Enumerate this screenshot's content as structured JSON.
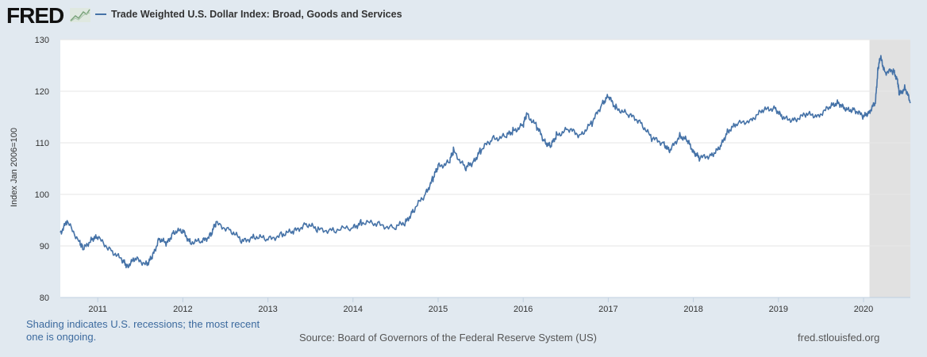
{
  "logo_text": "FRED",
  "footer": {
    "note": "Shading indicates U.S. recessions; the most recent one is ongoing.",
    "source": "Source: Board of Governors of the Federal Reserve System (US)",
    "site": "fred.stlouisfed.org"
  },
  "chart_data": {
    "type": "line",
    "title": "",
    "ylabel": "Index Jan 2006=100",
    "xlabel": "",
    "xlim": [
      2010.56,
      2020.55
    ],
    "ylim": [
      80,
      130
    ],
    "yticks": [
      80,
      90,
      100,
      110,
      120,
      130
    ],
    "xticks": [
      "2011",
      "2012",
      "2013",
      "2014",
      "2015",
      "2016",
      "2017",
      "2018",
      "2019",
      "2020"
    ],
    "grid": true,
    "legend": "top-left",
    "line_color": "#4572a7",
    "recession_color": "#e1e1e1",
    "recessions": [
      [
        2020.07,
        2020.55
      ]
    ],
    "series": [
      {
        "name": "Trade Weighted U.S. Dollar Index: Broad, Goods and Services",
        "x": [
          2010.56,
          2010.64,
          2010.79,
          2010.83,
          2010.93,
          2011.0,
          2011.16,
          2011.3,
          2011.35,
          2011.44,
          2011.58,
          2011.64,
          2011.72,
          2011.81,
          2011.89,
          2012.0,
          2012.09,
          2012.23,
          2012.33,
          2012.39,
          2012.56,
          2012.7,
          2012.84,
          2013.0,
          2013.17,
          2013.31,
          2013.45,
          2013.59,
          2013.78,
          2014.0,
          2014.1,
          2014.29,
          2014.48,
          2014.62,
          2014.71,
          2014.85,
          2014.94,
          2015.0,
          2015.13,
          2015.18,
          2015.32,
          2015.41,
          2015.5,
          2015.64,
          2015.79,
          2015.88,
          2016.0,
          2016.04,
          2016.16,
          2016.25,
          2016.32,
          2016.39,
          2016.53,
          2016.67,
          2016.81,
          2016.93,
          2017.0,
          2017.09,
          2017.23,
          2017.37,
          2017.51,
          2017.65,
          2017.72,
          2017.84,
          2017.93,
          2018.0,
          2018.07,
          2018.21,
          2018.31,
          2018.4,
          2018.5,
          2018.68,
          2018.82,
          2018.96,
          2019.05,
          2019.19,
          2019.33,
          2019.47,
          2019.61,
          2019.7,
          2019.79,
          2019.89,
          2020.0,
          2020.07,
          2020.14,
          2020.17,
          2020.2,
          2020.25,
          2020.35,
          2020.4,
          2020.42,
          2020.49,
          2020.55
        ],
        "y": [
          92.6,
          94.6,
          90.8,
          89.2,
          91.5,
          91.5,
          89.2,
          86.9,
          86.2,
          87.4,
          86.6,
          87.7,
          91.5,
          90.3,
          92.8,
          92.8,
          90.8,
          90.8,
          92.3,
          94.3,
          93.1,
          90.8,
          91.9,
          91.2,
          92.3,
          92.8,
          94.3,
          93.1,
          93.1,
          93.5,
          94.6,
          94.2,
          93.5,
          94.6,
          96.9,
          100.0,
          103.1,
          105.4,
          106.2,
          108.5,
          105.1,
          106.2,
          108.5,
          110.8,
          111.2,
          112.3,
          113.4,
          115.7,
          113.1,
          110.3,
          109.2,
          111.5,
          112.6,
          111.5,
          113.8,
          117.7,
          118.9,
          116.9,
          115.4,
          114.3,
          110.8,
          110.0,
          108.2,
          111.5,
          110.3,
          108.5,
          106.9,
          107.7,
          108.8,
          112.3,
          113.4,
          114.6,
          116.2,
          116.9,
          114.6,
          114.6,
          115.4,
          115.4,
          116.9,
          118.0,
          116.2,
          116.6,
          114.9,
          116.2,
          117.7,
          124.6,
          126.5,
          123.8,
          123.8,
          122.3,
          119.2,
          120.8,
          117.7
        ]
      }
    ]
  }
}
